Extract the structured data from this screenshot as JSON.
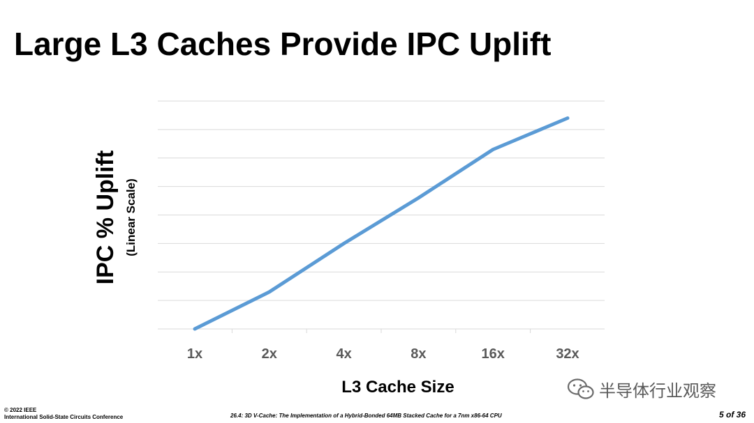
{
  "slide": {
    "title": "Large L3 Caches Provide IPC Uplift"
  },
  "chart_data": {
    "type": "line",
    "categories": [
      "1x",
      "2x",
      "4x",
      "8x",
      "16x",
      "32x"
    ],
    "series": [
      {
        "values": [
          0,
          13,
          30,
          46,
          63,
          74
        ],
        "color": "#5b9bd5"
      }
    ],
    "ylabel": "IPC % Uplift",
    "ylabel_sub": "(Linear Scale)",
    "xlabel": "L3 Cache Size",
    "ylim": [
      0,
      80
    ],
    "grid": true,
    "y_tick_labels_shown": false,
    "legend": "none"
  },
  "footer": {
    "copyright": "© 2022 IEEE",
    "conference": "International Solid-State Circuits Conference",
    "paper": "26.4:  3D V-Cache: The Implementation of a Hybrid-Bonded 64MB Stacked Cache for a 7nm x86-64 CPU",
    "page": "5 of 36"
  },
  "watermark": {
    "text": "半导体行业观察",
    "icon": "wechat-logo-icon"
  }
}
